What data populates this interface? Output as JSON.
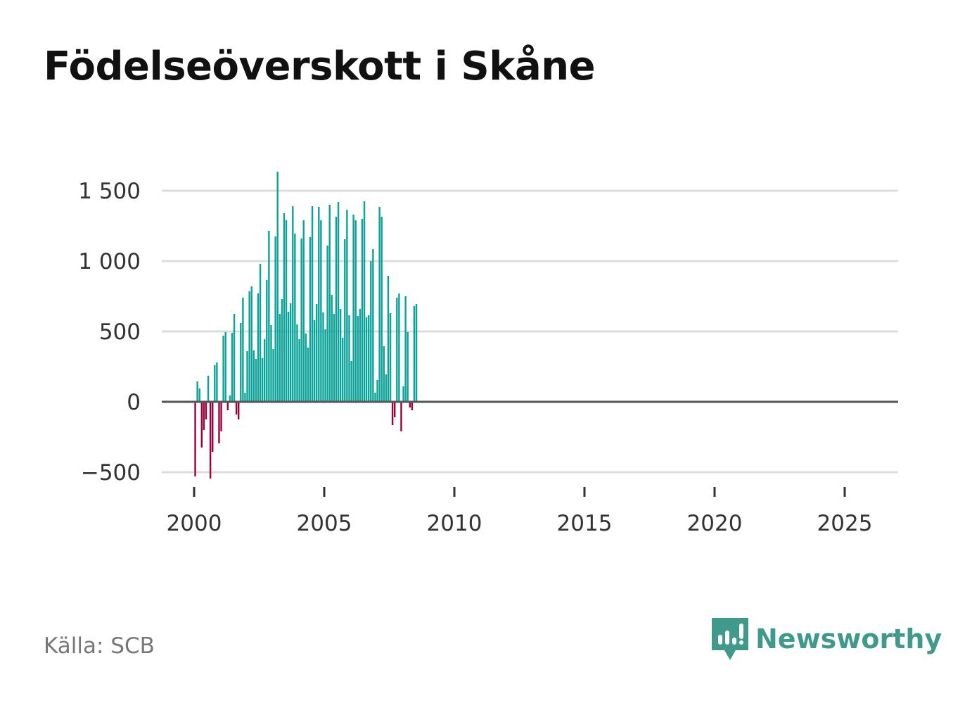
{
  "title": "Födelseöverskott i Skåne",
  "source": "Källa: SCB",
  "brand": {
    "name": "Newsworthy",
    "color": "#3f9a8c"
  },
  "colors": {
    "positive": "#0aa399",
    "negative": "#9b0039",
    "grid": "#dddddd",
    "zero": "#555555"
  },
  "chart_data": {
    "type": "bar",
    "title": "Födelseöverskott i Skåne",
    "xlabel": "",
    "ylabel": "",
    "ylim": [
      -560,
      1660
    ],
    "yticks": [
      {
        "value": -500,
        "label": "−500"
      },
      {
        "value": 0,
        "label": "0"
      },
      {
        "value": 500,
        "label": "500"
      },
      {
        "value": 1000,
        "label": "1 000"
      },
      {
        "value": 1500,
        "label": "1 500"
      }
    ],
    "xticks": [
      2000,
      2005,
      2010,
      2015,
      2020,
      2025
    ],
    "frequency": "monthly",
    "start": "2000-01",
    "grid": true,
    "legend": "none",
    "values": [
      -530,
      145,
      95,
      -325,
      -200,
      -125,
      185,
      -545,
      -355,
      260,
      280,
      -295,
      -210,
      470,
      495,
      -60,
      45,
      490,
      625,
      -90,
      -125,
      560,
      740,
      65,
      360,
      785,
      820,
      365,
      305,
      770,
      980,
      310,
      445,
      865,
      1215,
      545,
      375,
      1175,
      1635,
      625,
      730,
      1340,
      1290,
      640,
      700,
      1390,
      1195,
      550,
      445,
      1160,
      1290,
      485,
      385,
      1170,
      1390,
      580,
      695,
      1385,
      1290,
      635,
      515,
      1110,
      1400,
      760,
      625,
      1315,
      1420,
      660,
      455,
      1155,
      1365,
      615,
      290,
      1330,
      1290,
      610,
      660,
      1300,
      1425,
      600,
      615,
      1000,
      1085,
      65,
      155,
      1385,
      1315,
      395,
      195,
      895,
      630,
      -165,
      -110,
      740,
      770,
      -210,
      110,
      750,
      495,
      -40,
      -60,
      680,
      695
    ]
  }
}
